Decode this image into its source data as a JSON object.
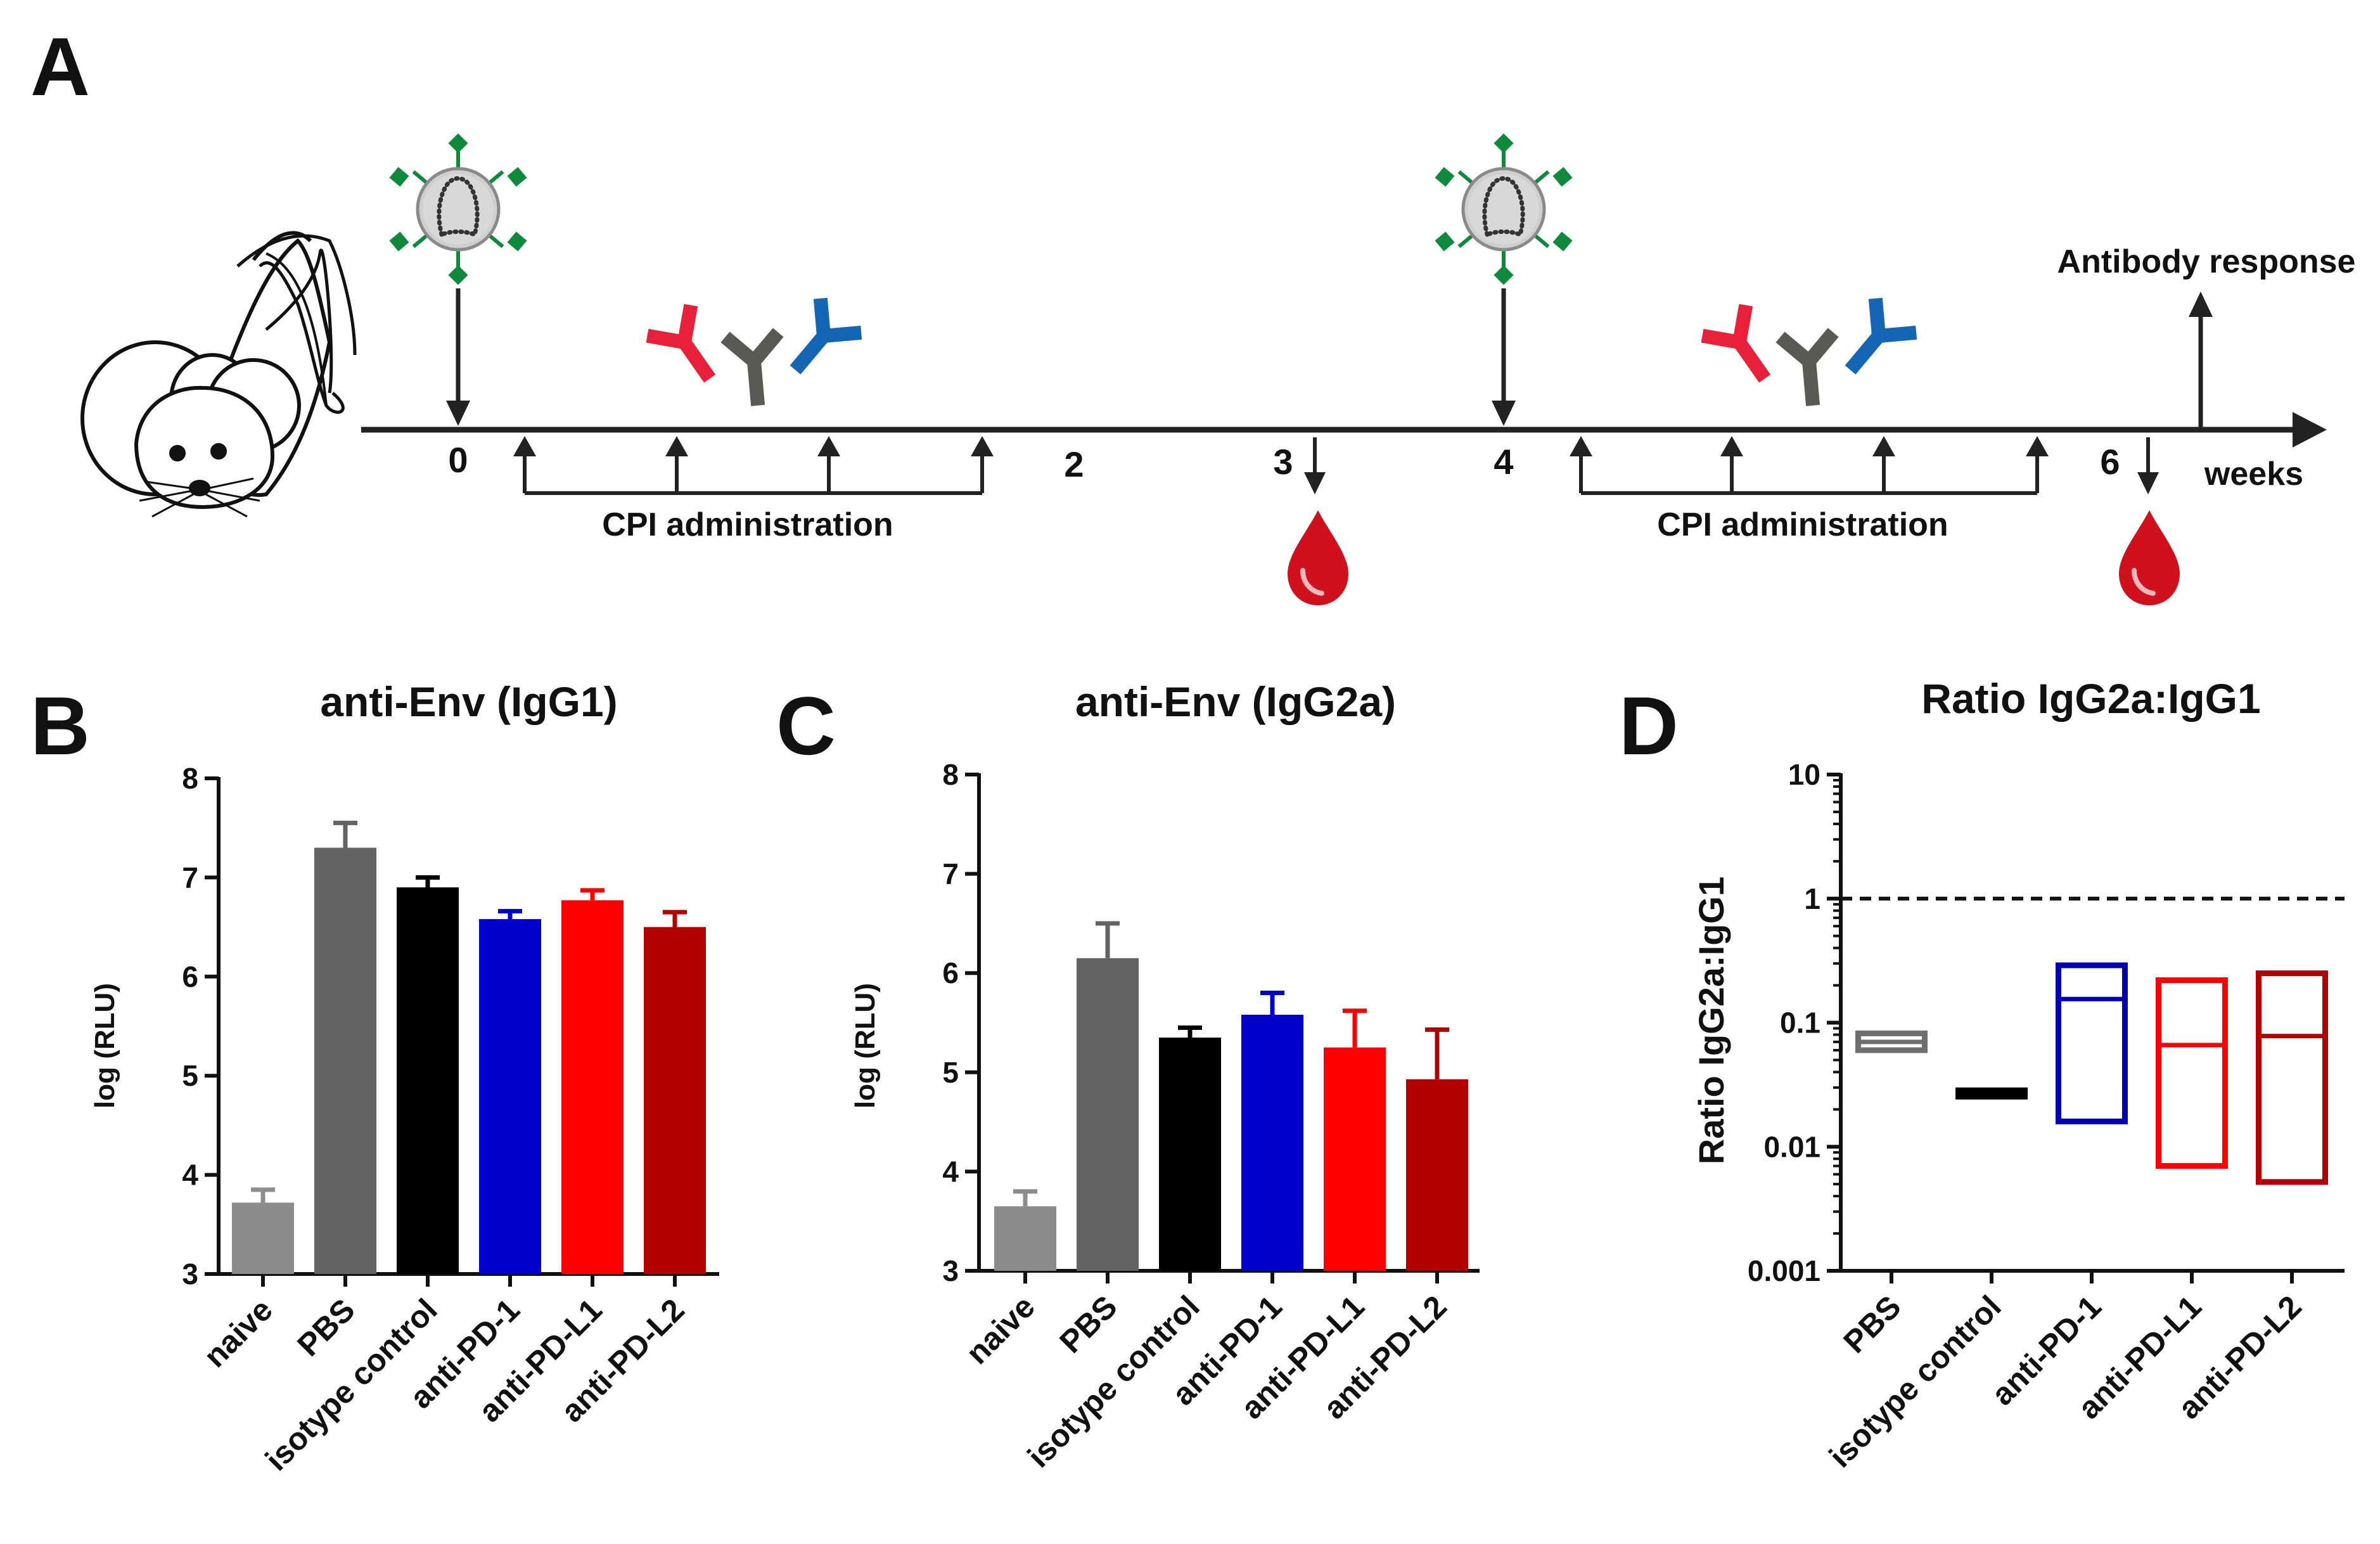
{
  "panels": {
    "A": "A",
    "B": "B",
    "C": "C",
    "D": "D"
  },
  "timeline": {
    "week_labels": [
      "0",
      "2",
      "3",
      "4",
      "6"
    ],
    "weeks_label": "weeks",
    "cpi_label": "CPI administration",
    "antibody_response_label": "Antibody response",
    "colors": {
      "antibody_red": "#e8203a",
      "antibody_gray": "#5a5a55",
      "antibody_blue": "#1565b5",
      "blood": "#d0101c",
      "vlp_spike": "#0f8a3c"
    }
  },
  "chart_data": [
    {
      "panel": "B",
      "type": "bar",
      "title": "anti-Env (IgG1)",
      "ylabel": "log (RLU)",
      "ylim": [
        3,
        8
      ],
      "yticks": [
        "3",
        "4",
        "5",
        "6",
        "7",
        "8"
      ],
      "categories": [
        "naive",
        "PBS",
        "isotype control",
        "anti-PD-1",
        "anti-PD-L1",
        "anti-PD-L2"
      ],
      "values": [
        3.72,
        7.3,
        6.9,
        6.58,
        6.77,
        6.5
      ],
      "errors": [
        0.13,
        0.25,
        0.1,
        0.08,
        0.1,
        0.15
      ],
      "colors": [
        "#8c8c8c",
        "#636363",
        "#000000",
        "#0000cc",
        "#ff0000",
        "#b30000"
      ]
    },
    {
      "panel": "C",
      "type": "bar",
      "title": "anti-Env (IgG2a)",
      "ylabel": "log (RLU)",
      "ylim": [
        3,
        8
      ],
      "yticks": [
        "3",
        "4",
        "5",
        "6",
        "7",
        "8"
      ],
      "categories": [
        "naive",
        "PBS",
        "isotype control",
        "anti-PD-1",
        "anti-PD-L1",
        "anti-PD-L2"
      ],
      "values": [
        3.65,
        6.15,
        5.35,
        5.58,
        5.25,
        4.93
      ],
      "errors": [
        0.15,
        0.35,
        0.1,
        0.22,
        0.37,
        0.5
      ],
      "colors": [
        "#8c8c8c",
        "#636363",
        "#000000",
        "#0000cc",
        "#ff0000",
        "#b30000"
      ]
    },
    {
      "panel": "D",
      "type": "box",
      "title": "Ratio IgG2a:IgG1",
      "ylabel": "Ratio IgG2a:IgG1",
      "scale": "log",
      "ylim": [
        0.001,
        10
      ],
      "yticks": [
        "0.001",
        "0.01",
        "0.1",
        "1",
        "10"
      ],
      "reference_line": 1,
      "categories": [
        "PBS",
        "isotype control",
        "anti-PD-1",
        "anti-PD-L1",
        "anti-PD-L2"
      ],
      "boxes": [
        {
          "min": 0.06,
          "median": 0.07,
          "max": 0.082
        },
        {
          "min": 0.0265,
          "median": 0.0275,
          "max": 0.0285
        },
        {
          "min": 0.016,
          "median": 0.155,
          "max": 0.29
        },
        {
          "min": 0.007,
          "median": 0.066,
          "max": 0.22
        },
        {
          "min": 0.0052,
          "median": 0.078,
          "max": 0.25
        }
      ],
      "colors": [
        "#6e6e6e",
        "#000000",
        "#0000b3",
        "#ff0000",
        "#b30000"
      ]
    }
  ]
}
